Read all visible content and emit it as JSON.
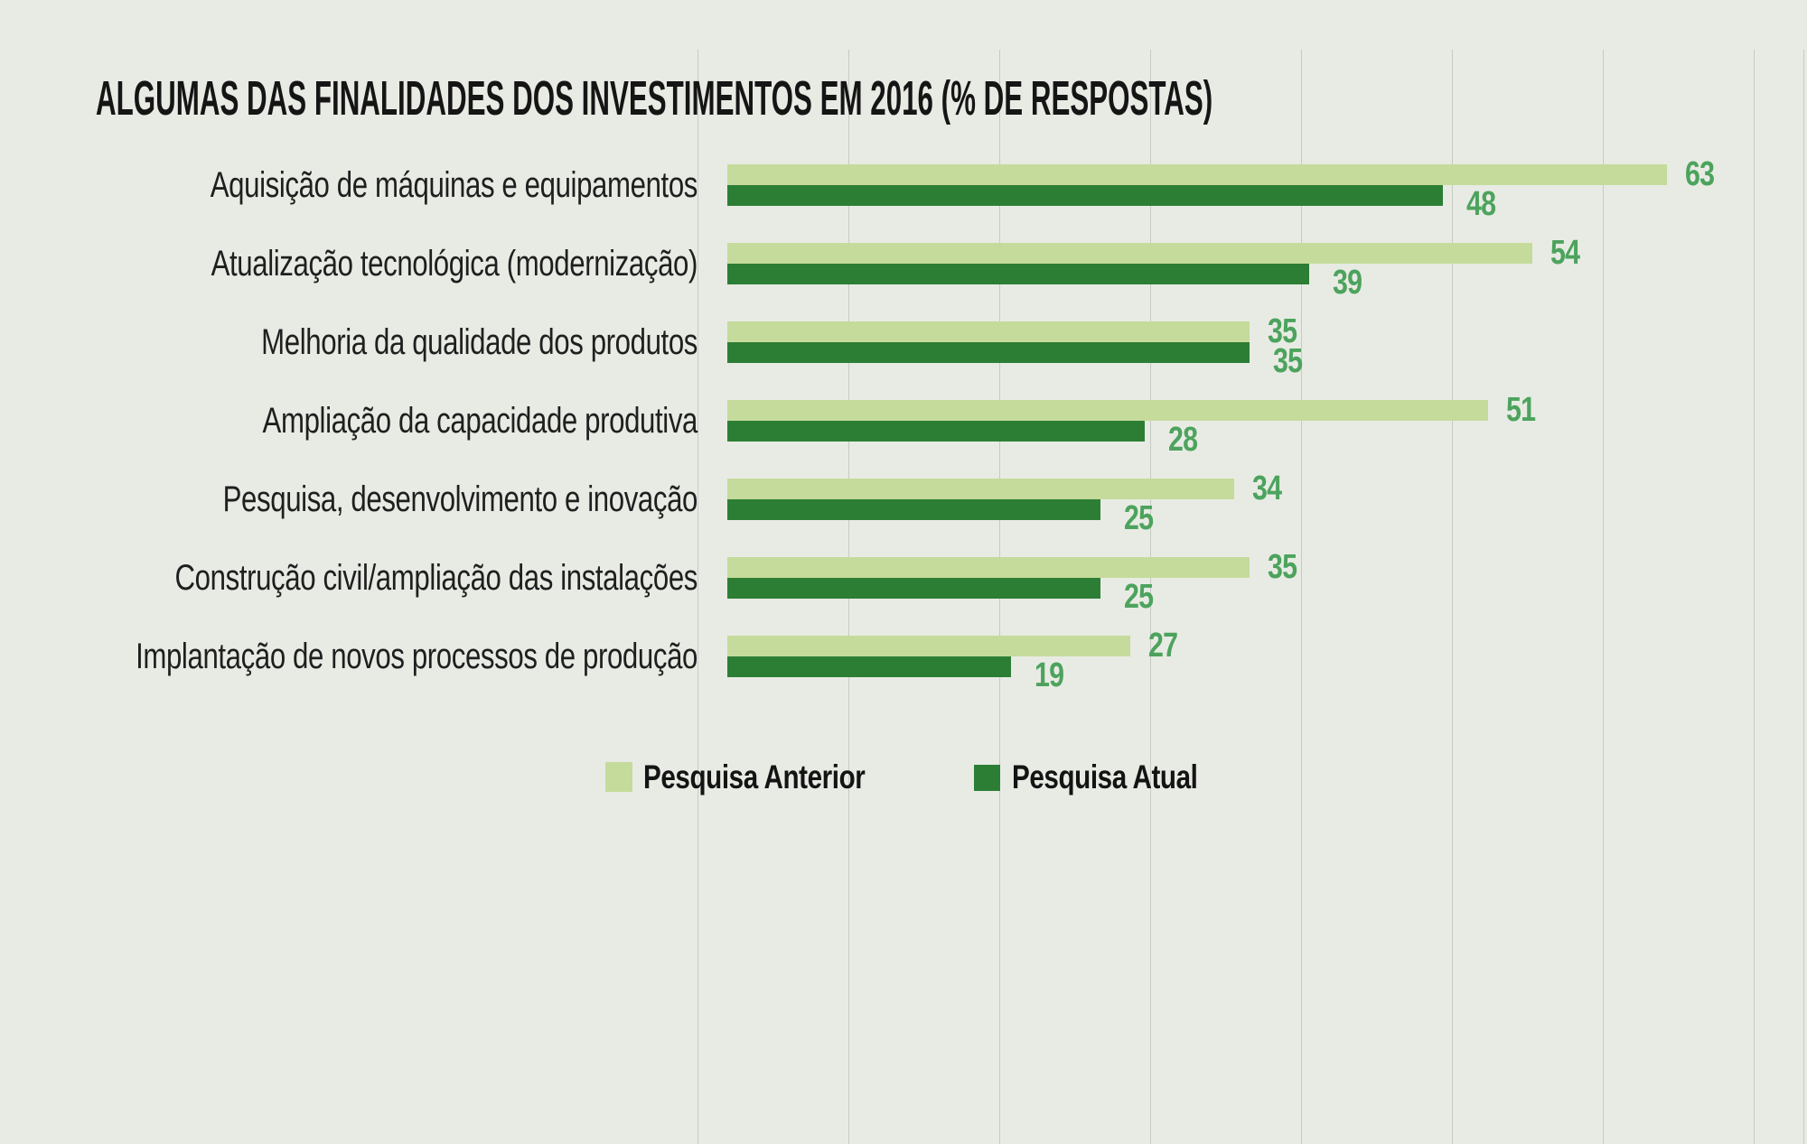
{
  "title": "ALGUMAS DAS FINALIDADES DOS INVESTIMENTOS EM 2016 (% DE RESPOSTAS)",
  "chart_data": {
    "type": "bar",
    "orientation": "horizontal",
    "title": "ALGUMAS DAS FINALIDADES DOS INVESTIMENTOS EM 2016 (% DE RESPOSTAS)",
    "categories": [
      "Aquisição de máquinas e equipamentos",
      "Atualização tecnológica (modernização)",
      "Melhoria da qualidade dos produtos",
      "Ampliação da capacidade produtiva",
      "Pesquisa, desenvolvimento e inovação",
      "Construção civil/ampliação das instalações",
      "Implantação de novos processos de produção"
    ],
    "series": [
      {
        "name": "Pesquisa Anterior",
        "color": "#c5db9b",
        "values": [
          63,
          54,
          35,
          51,
          34,
          35,
          27
        ]
      },
      {
        "name": "Pesquisa Atual",
        "color": "#2d7e35",
        "values": [
          48,
          39,
          35,
          28,
          25,
          25,
          19
        ]
      }
    ],
    "value_labels_shown": true,
    "value_label_color": "#4da35d",
    "xlim": [
      0,
      72
    ],
    "grid": "vertical-decorative-columns",
    "legend_position": "bottom"
  },
  "legend": {
    "items": [
      {
        "label": "Pesquisa Anterior",
        "color": "#c5db9b"
      },
      {
        "label": "Pesquisa Atual",
        "color": "#2d7e35"
      }
    ]
  },
  "colors": {
    "background": "#e8ebe4",
    "gridline": "#c5cbc3",
    "title_text": "#151515",
    "label_text": "#1f1f1f",
    "value_text": "#4da35d"
  }
}
